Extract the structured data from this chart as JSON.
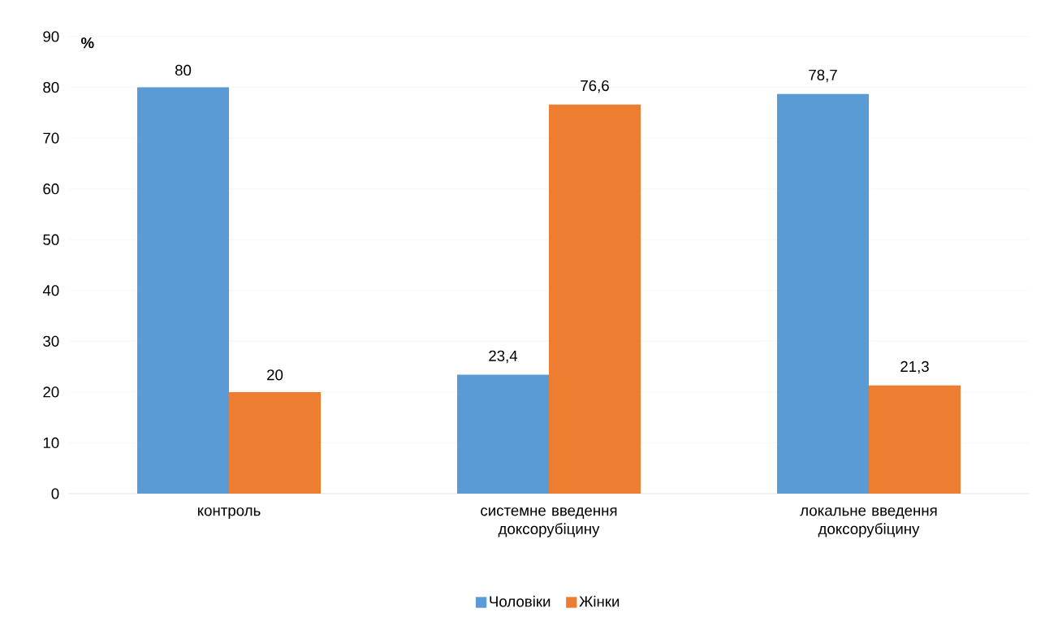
{
  "chart_data": {
    "type": "bar",
    "ylabel": "%",
    "categories": [
      "контроль",
      "системне введення доксорубіцину",
      "локальне введення доксорубіцину"
    ],
    "series": [
      {
        "name": "Чоловіки",
        "color": "#5b9bd5",
        "values": [
          80,
          23.4,
          78.7
        ],
        "value_labels": [
          "80",
          "23,4",
          "78,7"
        ]
      },
      {
        "name": "Жінки",
        "color": "#ed7d31",
        "values": [
          20,
          76.6,
          21.3
        ],
        "value_labels": [
          "20",
          "76,6",
          "21,3"
        ]
      }
    ],
    "ylim": [
      0,
      90
    ],
    "yticks": [
      0,
      10,
      20,
      30,
      40,
      50,
      60,
      70,
      80,
      90
    ],
    "grid": "y",
    "legend": "bottom"
  }
}
